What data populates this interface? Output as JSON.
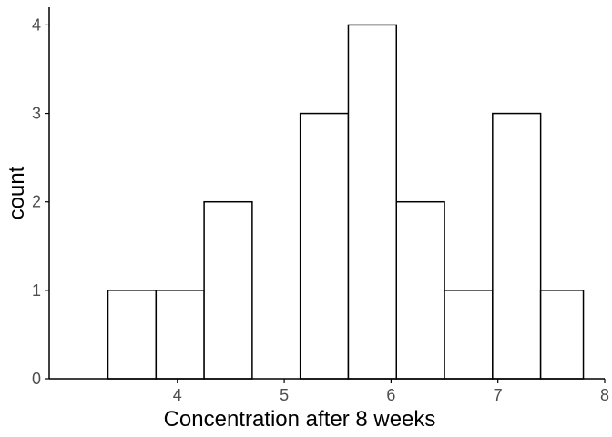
{
  "chart_data": {
    "type": "bar",
    "subtype": "histogram",
    "title": "",
    "xlabel": "Concentration after 8 weeks",
    "ylabel": "count",
    "bin_edges": [
      3.35,
      3.8,
      4.25,
      4.7,
      5.15,
      5.6,
      6.05,
      6.5,
      6.95,
      7.4,
      7.8
    ],
    "counts": [
      1,
      1,
      2,
      0,
      3,
      4,
      2,
      1,
      3,
      1
    ],
    "xlim": [
      2.8,
      8.0
    ],
    "ylim": [
      0,
      4.2
    ],
    "x_ticks": [
      "4",
      "5",
      "6",
      "7",
      "8"
    ],
    "y_ticks": [
      "0",
      "1",
      "2",
      "3",
      "4"
    ],
    "grid": false,
    "bar_fill": "#ffffff",
    "bar_stroke": "#000000"
  }
}
